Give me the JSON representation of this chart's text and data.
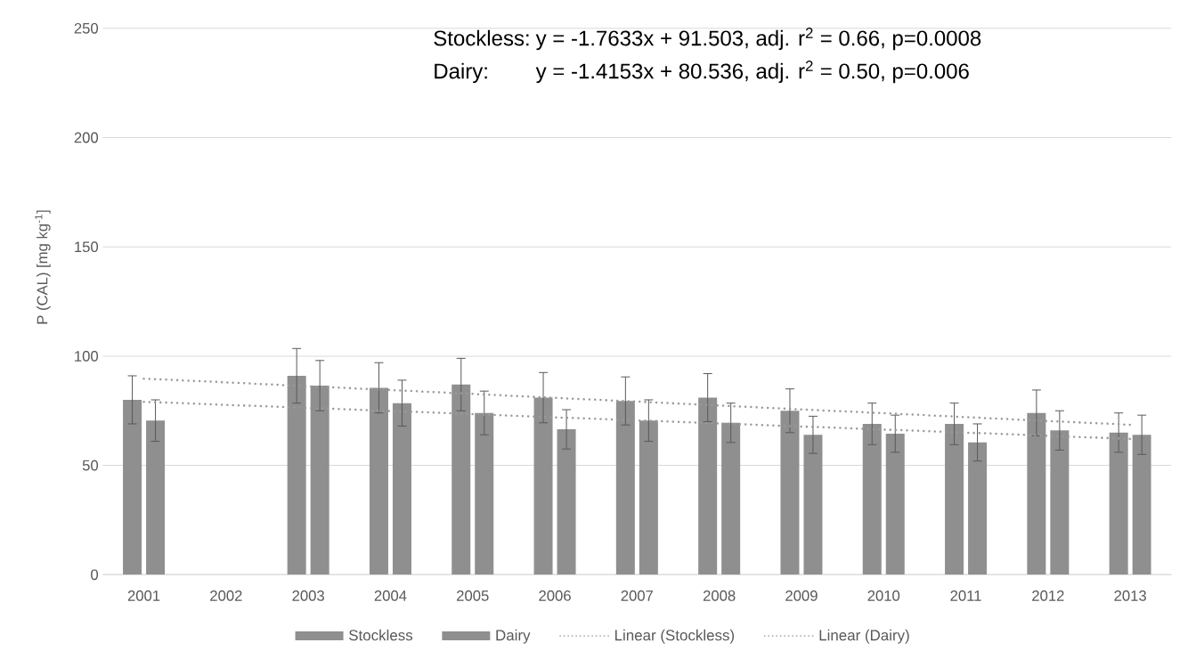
{
  "chart_data": {
    "type": "bar",
    "ylabel": "P (CAL) [mg kg$^{-1}$]",
    "annotations": [
      "Stockless:",
      "y = -1.7633x + 91.503, adj. r$^{2}$ = 0.66, p=0.0008",
      "Dairy:",
      "y = -1.4153x + 80.536, adj. r$^{2}$ = 0.50, p=0.006"
    ],
    "x": [
      2001,
      2002,
      2003,
      2004,
      2005,
      2006,
      2007,
      2008,
      2009,
      2010,
      2011,
      2012,
      2013
    ],
    "series": [
      {
        "name": "Stockless",
        "color": "#8f8f8f",
        "values": [
          80,
          null,
          91,
          85.5,
          87,
          81,
          79.5,
          81,
          75,
          69,
          69,
          74,
          65
        ],
        "errors": [
          11,
          null,
          12.5,
          11.5,
          12,
          11.5,
          11,
          11,
          10,
          9.5,
          9.5,
          10.5,
          9
        ]
      },
      {
        "name": "Dairy",
        "color": "#8f8f8f",
        "values": [
          70.5,
          null,
          86.5,
          78.5,
          74,
          66.5,
          70.5,
          69.5,
          64,
          64.5,
          60.5,
          66,
          64
        ],
        "errors": [
          9.5,
          null,
          11.5,
          10.5,
          10,
          9,
          9.5,
          9,
          8.5,
          8.5,
          8.5,
          9,
          9
        ]
      },
      {
        "name": "Linear (Stockless)",
        "type": "line",
        "color": "#9a9a9a",
        "line_style": "dotted",
        "values": [
          89.7,
          88.0,
          86.2,
          84.5,
          82.7,
          80.9,
          79.2,
          77.4,
          75.6,
          73.9,
          72.1,
          70.3,
          68.6
        ]
      },
      {
        "name": "Linear (Dairy)",
        "type": "line",
        "color": "#9a9a9a",
        "line_style": "dotted",
        "values": [
          79.1,
          77.7,
          76.3,
          74.9,
          73.5,
          72.0,
          70.6,
          69.2,
          67.8,
          66.4,
          65.0,
          63.6,
          62.1
        ]
      }
    ],
    "xlim": [
      2000.5,
      2013.5
    ],
    "xticks": [
      2001,
      2002,
      2003,
      2004,
      2005,
      2006,
      2007,
      2008,
      2009,
      2010,
      2011,
      2012,
      2013
    ],
    "ylim": [
      0,
      250
    ],
    "yticks": [
      0,
      50,
      100,
      150,
      200,
      250
    ],
    "grid": "y",
    "legend": "bottom"
  }
}
